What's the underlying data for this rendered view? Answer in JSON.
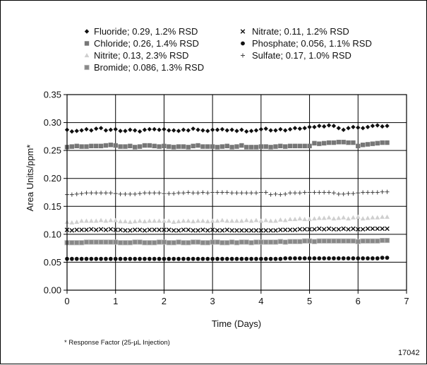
{
  "chart_data": {
    "type": "scatter",
    "xlabel": "Time (Days)",
    "ylabel": "Area Units/ppm*",
    "xlim": [
      0,
      7
    ],
    "ylim": [
      0,
      0.35
    ],
    "xticks": [
      "0",
      "1",
      "2",
      "3",
      "4",
      "5",
      "6",
      "7"
    ],
    "yticks": [
      "0.00",
      "0.05",
      "0.10",
      "0.15",
      "0.20",
      "0.25",
      "0.30",
      "0.35"
    ],
    "grid": true,
    "legend_position": "top",
    "footnote": "* Response Factor (25-µL Injection)",
    "figure_number": "17042",
    "x": [
      0,
      0.1,
      0.2,
      0.3,
      0.4,
      0.5,
      0.6,
      0.7,
      0.8,
      0.9,
      1.0,
      1.1,
      1.2,
      1.3,
      1.4,
      1.5,
      1.6,
      1.7,
      1.8,
      1.9,
      2.0,
      2.1,
      2.2,
      2.3,
      2.4,
      2.5,
      2.6,
      2.7,
      2.8,
      2.9,
      3.0,
      3.1,
      3.2,
      3.3,
      3.4,
      3.5,
      3.6,
      3.7,
      3.8,
      3.9,
      4.0,
      4.1,
      4.2,
      4.3,
      4.4,
      4.5,
      4.6,
      4.7,
      4.8,
      4.9,
      5.0,
      5.1,
      5.2,
      5.3,
      5.4,
      5.5,
      5.6,
      5.7,
      5.8,
      5.9,
      6.0,
      6.1,
      6.2,
      6.3,
      6.4,
      6.5,
      6.6
    ],
    "series": [
      {
        "name": "Fluoride; 0.29, 1.2% RSD",
        "marker": "diamond",
        "color": "#111111",
        "values": [
          0.287,
          0.284,
          0.285,
          0.286,
          0.288,
          0.286,
          0.289,
          0.29,
          0.286,
          0.287,
          0.288,
          0.285,
          0.285,
          0.287,
          0.286,
          0.284,
          0.287,
          0.288,
          0.288,
          0.287,
          0.288,
          0.286,
          0.286,
          0.285,
          0.287,
          0.286,
          0.289,
          0.287,
          0.286,
          0.285,
          0.287,
          0.287,
          0.288,
          0.286,
          0.287,
          0.285,
          0.287,
          0.284,
          0.285,
          0.286,
          0.288,
          0.289,
          0.286,
          0.286,
          0.288,
          0.286,
          0.288,
          0.29,
          0.289,
          0.29,
          0.292,
          0.292,
          0.294,
          0.293,
          0.295,
          0.294,
          0.29,
          0.287,
          0.29,
          0.292,
          0.291,
          0.29,
          0.292,
          0.294,
          0.295,
          0.293,
          0.294
        ]
      },
      {
        "name": "Chloride; 0.26, 1.4% RSD",
        "marker": "square",
        "color": "#777777",
        "values": [
          0.256,
          0.257,
          0.258,
          0.257,
          0.257,
          0.258,
          0.258,
          0.258,
          0.259,
          0.26,
          0.259,
          0.257,
          0.257,
          0.258,
          0.256,
          0.257,
          0.259,
          0.259,
          0.258,
          0.257,
          0.258,
          0.257,
          0.256,
          0.257,
          0.257,
          0.256,
          0.258,
          0.259,
          0.257,
          0.257,
          0.257,
          0.256,
          0.257,
          0.258,
          0.256,
          0.257,
          0.259,
          0.256,
          0.256,
          0.256,
          0.257,
          0.257,
          0.256,
          0.257,
          0.258,
          0.257,
          0.258,
          0.258,
          0.258,
          0.258,
          0.258,
          0.263,
          0.262,
          0.263,
          0.264,
          0.264,
          0.265,
          0.265,
          0.264,
          0.264,
          0.258,
          0.26,
          0.261,
          0.262,
          0.263,
          0.264,
          0.264
        ]
      },
      {
        "name": "Nitrite; 0.13, 2.3% RSD",
        "marker": "triangle",
        "color": "#cfcfcf",
        "values": [
          0.122,
          0.121,
          0.122,
          0.124,
          0.124,
          0.124,
          0.124,
          0.125,
          0.124,
          0.125,
          0.125,
          0.123,
          0.123,
          0.122,
          0.123,
          0.124,
          0.123,
          0.124,
          0.124,
          0.124,
          0.124,
          0.124,
          0.122,
          0.123,
          0.124,
          0.124,
          0.123,
          0.124,
          0.124,
          0.123,
          0.124,
          0.124,
          0.125,
          0.124,
          0.124,
          0.124,
          0.124,
          0.125,
          0.124,
          0.125,
          0.124,
          0.125,
          0.124,
          0.124,
          0.126,
          0.125,
          0.127,
          0.127,
          0.128,
          0.127,
          0.127,
          0.128,
          0.129,
          0.129,
          0.13,
          0.128,
          0.129,
          0.13,
          0.128,
          0.13,
          0.131,
          0.128,
          0.129,
          0.13,
          0.13,
          0.131,
          0.131
        ]
      },
      {
        "name": "Bromide; 0.086, 1.3% RSD",
        "marker": "hatched-square",
        "color": "#888888",
        "values": [
          0.085,
          0.085,
          0.085,
          0.085,
          0.086,
          0.086,
          0.086,
          0.086,
          0.086,
          0.086,
          0.086,
          0.085,
          0.085,
          0.085,
          0.086,
          0.086,
          0.085,
          0.085,
          0.085,
          0.086,
          0.086,
          0.085,
          0.085,
          0.086,
          0.085,
          0.085,
          0.086,
          0.086,
          0.085,
          0.085,
          0.086,
          0.086,
          0.085,
          0.085,
          0.086,
          0.085,
          0.086,
          0.086,
          0.085,
          0.086,
          0.086,
          0.086,
          0.086,
          0.086,
          0.087,
          0.086,
          0.087,
          0.087,
          0.087,
          0.088,
          0.088,
          0.087,
          0.088,
          0.088,
          0.088,
          0.088,
          0.088,
          0.088,
          0.088,
          0.088,
          0.087,
          0.088,
          0.088,
          0.088,
          0.088,
          0.089,
          0.089
        ]
      },
      {
        "name": "Nitrate; 0.11, 1.2% RSD",
        "marker": "x",
        "color": "#111111",
        "values": [
          0.108,
          0.107,
          0.108,
          0.108,
          0.108,
          0.109,
          0.108,
          0.109,
          0.108,
          0.109,
          0.108,
          0.108,
          0.107,
          0.107,
          0.108,
          0.108,
          0.107,
          0.108,
          0.108,
          0.108,
          0.108,
          0.108,
          0.107,
          0.107,
          0.108,
          0.108,
          0.107,
          0.107,
          0.108,
          0.107,
          0.108,
          0.107,
          0.107,
          0.108,
          0.107,
          0.107,
          0.107,
          0.107,
          0.107,
          0.107,
          0.107,
          0.107,
          0.107,
          0.107,
          0.108,
          0.108,
          0.108,
          0.108,
          0.109,
          0.109,
          0.109,
          0.109,
          0.11,
          0.109,
          0.11,
          0.109,
          0.109,
          0.11,
          0.109,
          0.11,
          0.109,
          0.109,
          0.11,
          0.11,
          0.11,
          0.11,
          0.11
        ]
      },
      {
        "name": "Phosphate; 0.056, 1.1% RSD",
        "marker": "circle",
        "color": "#111111",
        "values": [
          0.056,
          0.056,
          0.056,
          0.056,
          0.056,
          0.056,
          0.056,
          0.056,
          0.056,
          0.056,
          0.056,
          0.056,
          0.056,
          0.056,
          0.056,
          0.056,
          0.056,
          0.056,
          0.056,
          0.056,
          0.056,
          0.056,
          0.056,
          0.056,
          0.056,
          0.056,
          0.056,
          0.056,
          0.056,
          0.056,
          0.056,
          0.056,
          0.056,
          0.056,
          0.056,
          0.056,
          0.056,
          0.056,
          0.056,
          0.056,
          0.056,
          0.056,
          0.056,
          0.056,
          0.056,
          0.057,
          0.057,
          0.057,
          0.057,
          0.057,
          0.057,
          0.057,
          0.057,
          0.057,
          0.057,
          0.057,
          0.057,
          0.057,
          0.057,
          0.057,
          0.057,
          0.057,
          0.057,
          0.057,
          0.057,
          0.058,
          0.058
        ]
      },
      {
        "name": "Sulfate; 0.17, 1.0% RSD",
        "marker": "plus",
        "color": "#444444",
        "values": [
          0.171,
          0.171,
          0.172,
          0.173,
          0.174,
          0.174,
          0.174,
          0.174,
          0.174,
          0.174,
          0.173,
          0.172,
          0.172,
          0.172,
          0.172,
          0.173,
          0.174,
          0.174,
          0.174,
          0.174,
          0.173,
          0.173,
          0.173,
          0.174,
          0.174,
          0.175,
          0.174,
          0.174,
          0.175,
          0.174,
          0.175,
          0.175,
          0.175,
          0.175,
          0.174,
          0.174,
          0.174,
          0.174,
          0.174,
          0.174,
          0.175,
          0.175,
          0.171,
          0.172,
          0.171,
          0.172,
          0.174,
          0.174,
          0.174,
          0.175,
          0.175,
          0.175,
          0.175,
          0.175,
          0.175,
          0.174,
          0.172,
          0.172,
          0.173,
          0.173,
          0.174,
          0.175,
          0.175,
          0.175,
          0.175,
          0.176,
          0.176
        ]
      }
    ]
  }
}
